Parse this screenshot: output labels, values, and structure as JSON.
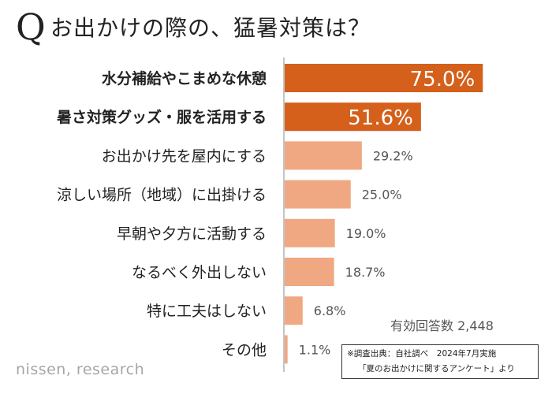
{
  "title": {
    "mark": "Q",
    "text": "お出かけの際の、猛暑対策は？"
  },
  "chart_data": {
    "type": "bar",
    "orientation": "horizontal",
    "categories": [
      "水分補給やこまめな休憩",
      "暑さ対策グッズ・服を活用する",
      "お出かけ先を屋内にする",
      "涼しい場所（地域）に出掛ける",
      "早朝や夕方に活動する",
      "なるべく外出しない",
      "特に工夫はしない",
      "その他"
    ],
    "values": [
      75.0,
      51.6,
      29.2,
      25.0,
      19.0,
      18.7,
      6.8,
      1.1
    ],
    "value_labels": [
      "75.0%",
      "51.6%",
      "29.2%",
      "25.0%",
      "19.0%",
      "18.7%",
      "6.8%",
      "1.1%"
    ],
    "highlighted": [
      true,
      true,
      false,
      false,
      false,
      false,
      false,
      false
    ],
    "unit": "%",
    "grid": false,
    "colors": {
      "highlight": "#d4601b",
      "normal": "#f0a882",
      "axis": "#888888"
    }
  },
  "total_label": "有効回答数 2,448",
  "source": {
    "line1": "※調査出典：自社調べ　2024年7月実施",
    "line2": "「夏のお出かけに関するアンケート」より"
  },
  "brand": "nissen, research"
}
